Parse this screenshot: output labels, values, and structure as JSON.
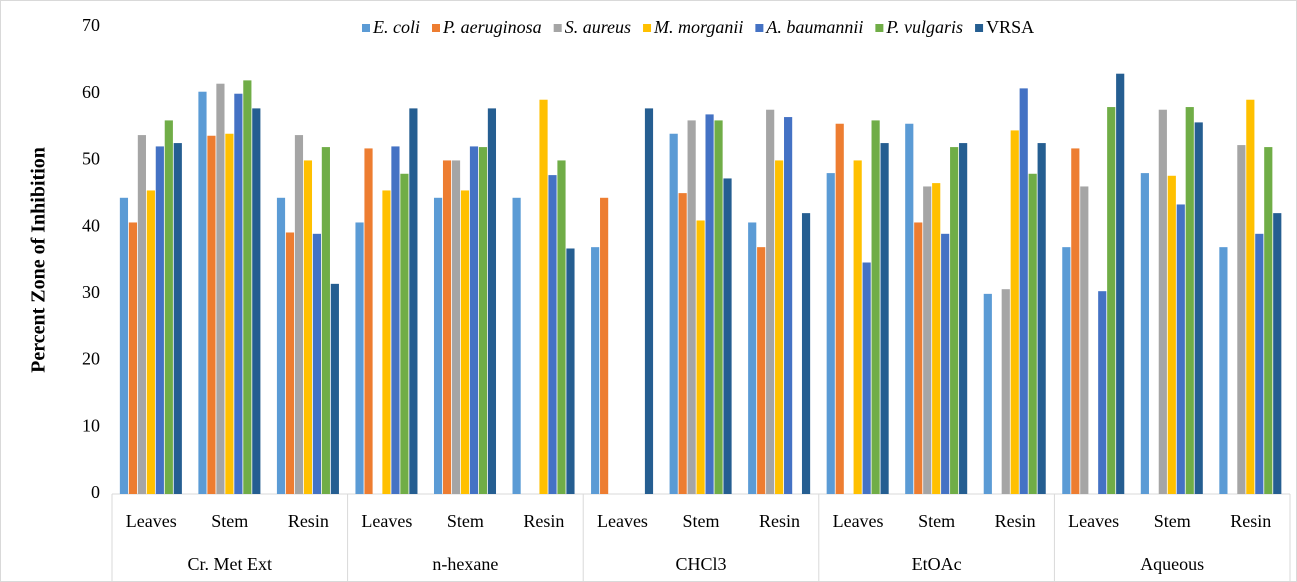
{
  "chart_data": {
    "type": "bar",
    "ylabel": "Percent Zone of Inhibition",
    "ylim": [
      0,
      70
    ],
    "yticks": [
      0,
      10,
      20,
      30,
      40,
      50,
      60,
      70
    ],
    "grid": false,
    "legend": "top",
    "groups": [
      {
        "name": "Cr. Met Ext",
        "categories": [
          "Leaves",
          "Stem",
          "Resin"
        ]
      },
      {
        "name": "n-hexane",
        "categories": [
          "Leaves",
          "Stem",
          "Resin"
        ]
      },
      {
        "name": "CHCl3",
        "categories": [
          "Leaves",
          "Stem",
          "Resin"
        ]
      },
      {
        "name": "EtOAc",
        "categories": [
          "Leaves",
          "Stem",
          "Resin"
        ]
      },
      {
        "name": "Aqueous",
        "categories": [
          "Leaves",
          "Stem",
          "Resin"
        ]
      }
    ],
    "series": [
      {
        "name": "E. coli",
        "color": "#5b9bd5",
        "font_style": "italic",
        "values": [
          44.4,
          60.3,
          44.4,
          40.7,
          44.4,
          44.4,
          37,
          54,
          40.7,
          48.1,
          55.5,
          30,
          37,
          48.1,
          37
        ]
      },
      {
        "name": "P. aeruginosa",
        "color": "#ed7d31",
        "font_style": "italic",
        "values": [
          40.7,
          53.7,
          39.2,
          51.8,
          50,
          null,
          44.4,
          45.1,
          37,
          55.5,
          40.7,
          null,
          51.8,
          null,
          null
        ]
      },
      {
        "name": "S. aureus",
        "color": "#a5a5a5",
        "font_style": "italic",
        "values": [
          53.8,
          61.5,
          53.8,
          null,
          50,
          null,
          null,
          56,
          57.6,
          null,
          46.1,
          30.7,
          46.1,
          57.6,
          52.3
        ]
      },
      {
        "name": "M. morganii",
        "color": "#ffc000",
        "font_style": "italic",
        "values": [
          45.5,
          54,
          50,
          45.5,
          45.5,
          59.1,
          null,
          41,
          50,
          50,
          46.6,
          54.5,
          null,
          47.7,
          59.1
        ]
      },
      {
        "name": "A. baumannii",
        "color": "#4472c4",
        "font_style": "italic",
        "values": [
          52.1,
          60,
          39,
          52.1,
          52.1,
          47.8,
          null,
          56.9,
          56.5,
          34.7,
          39,
          60.8,
          30.4,
          43.4,
          39
        ]
      },
      {
        "name": "P. vulgaris",
        "color": "#70ad47",
        "font_style": "italic",
        "values": [
          56,
          62,
          52,
          48,
          52,
          50,
          null,
          56,
          null,
          56,
          52,
          48,
          58,
          58,
          52
        ]
      },
      {
        "name": "VRSA",
        "color": "#255e91",
        "font_style": "normal",
        "values": [
          52.6,
          57.8,
          31.5,
          57.8,
          57.8,
          36.8,
          57.8,
          47.3,
          42.1,
          52.6,
          52.6,
          52.6,
          63,
          55.7,
          42.1
        ]
      }
    ]
  }
}
